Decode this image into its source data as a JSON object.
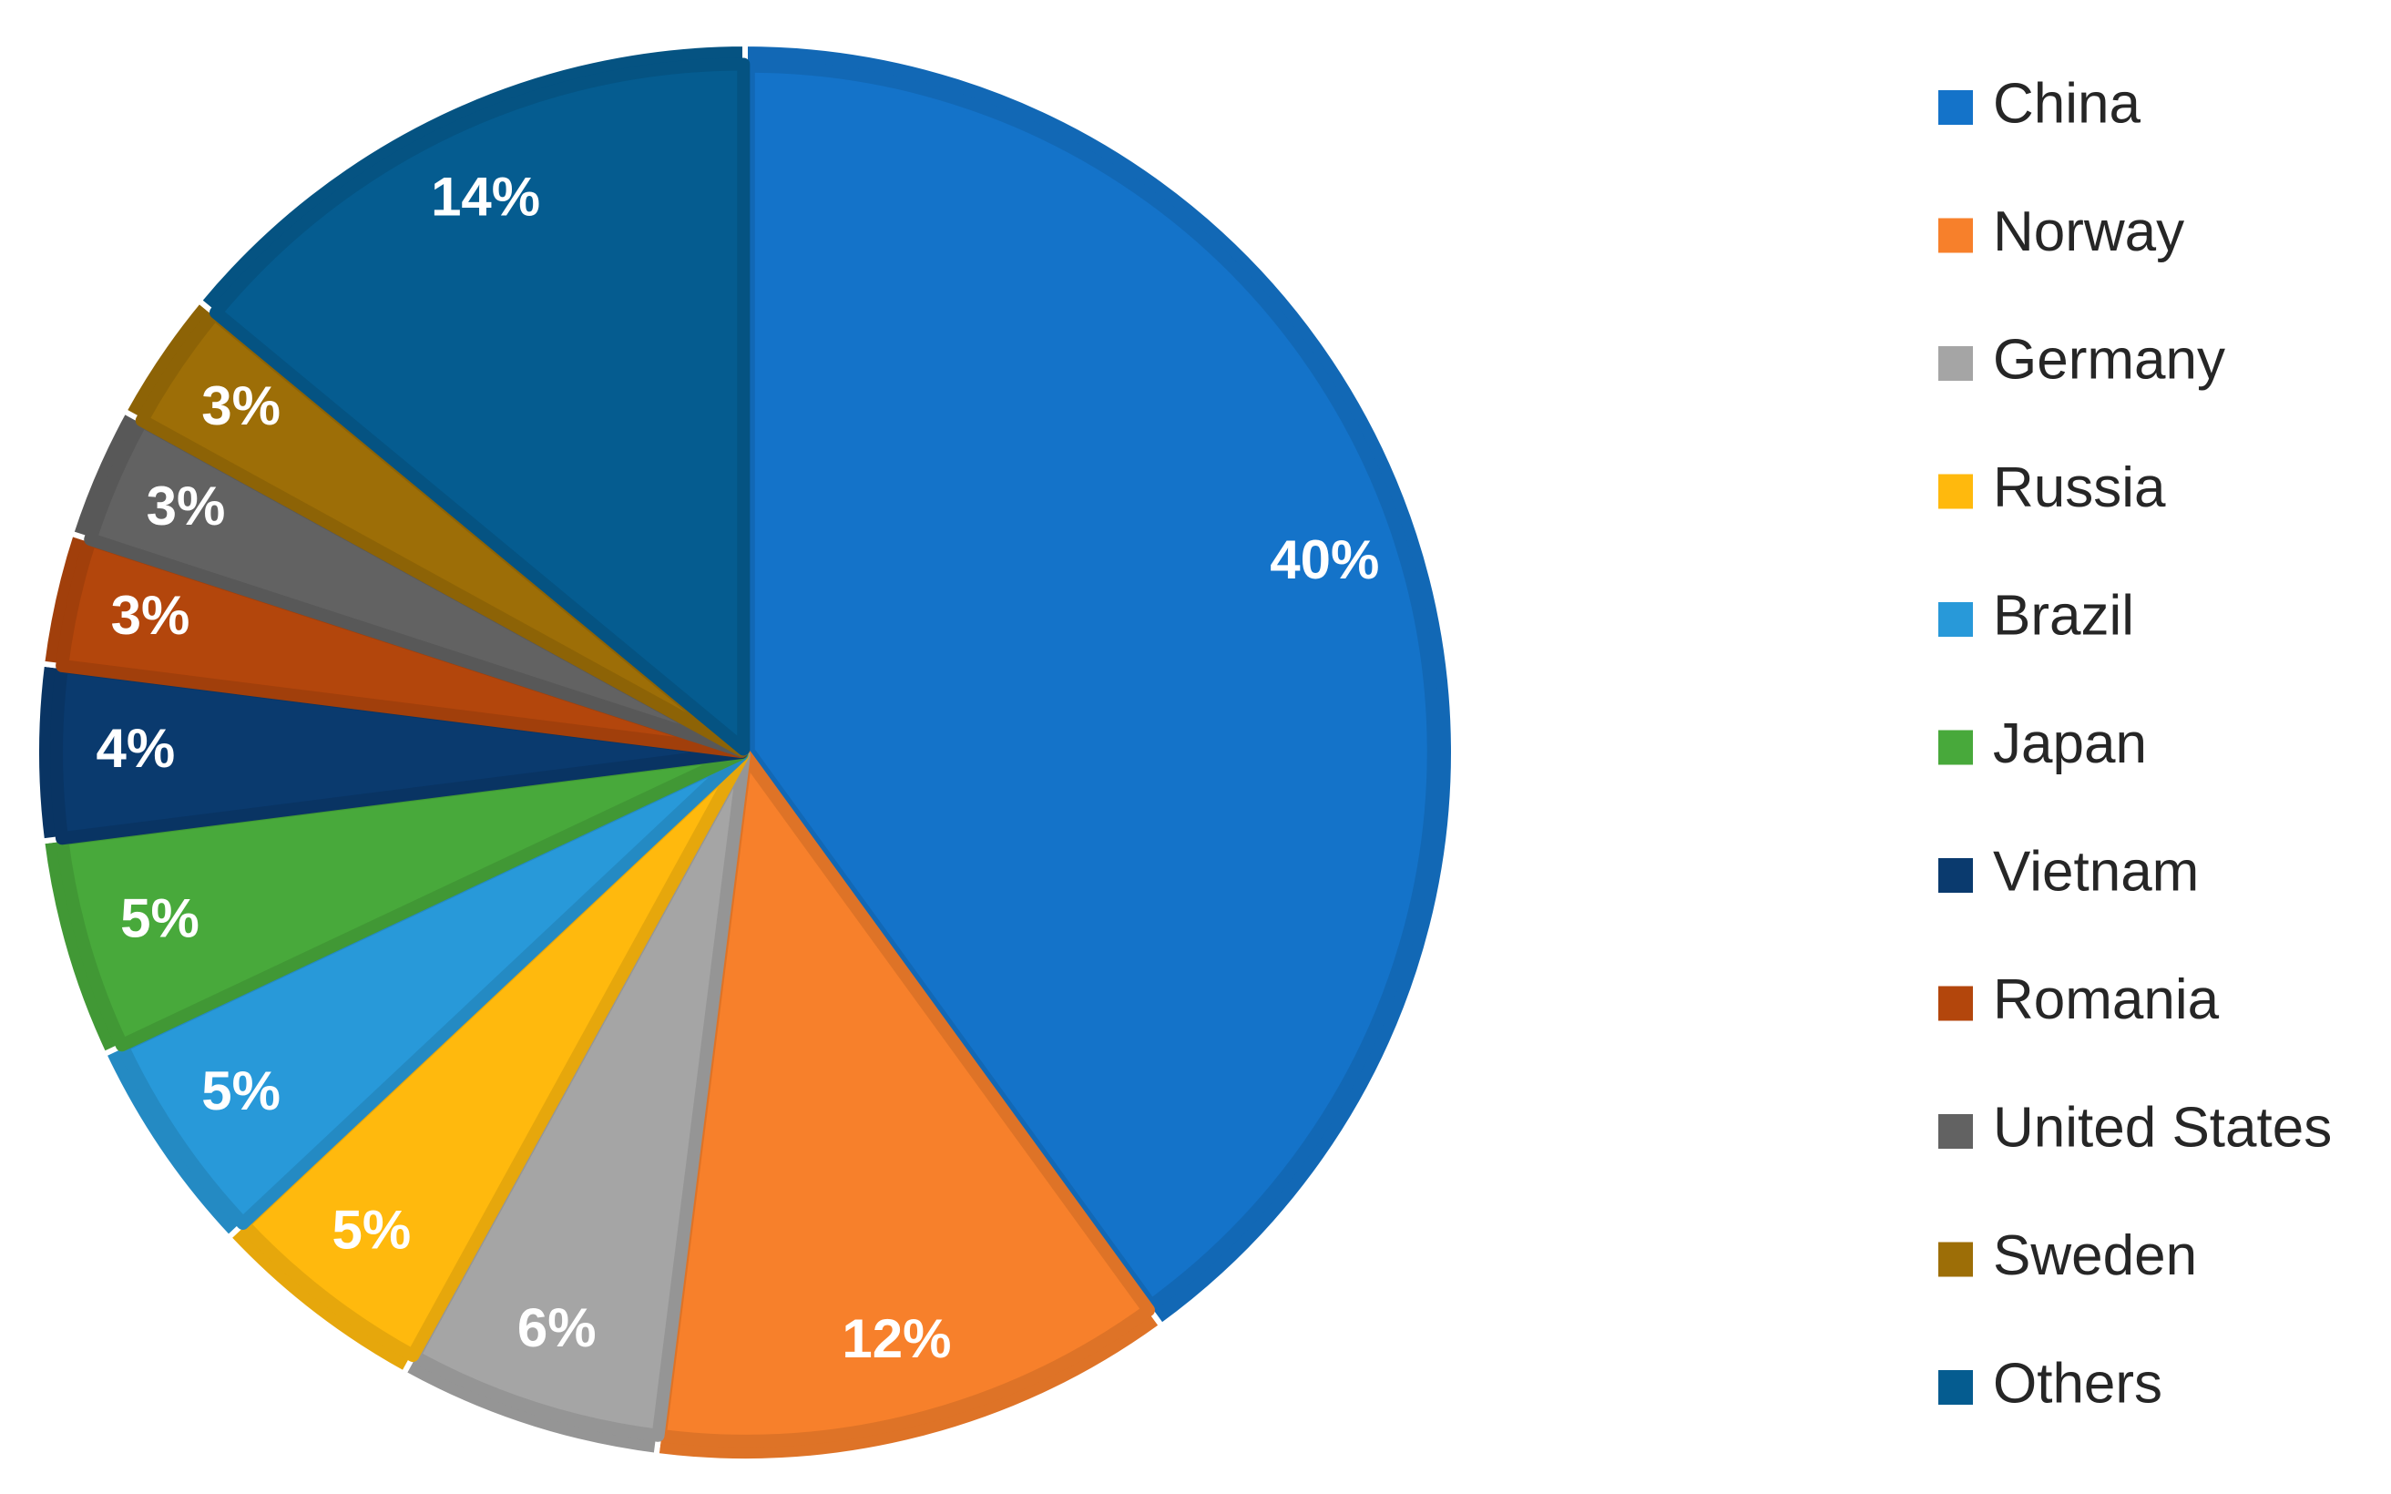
{
  "chart_data": {
    "type": "pie",
    "legend_position": "right",
    "slices": [
      {
        "name": "China",
        "value": 40,
        "label": "40%",
        "color": "#1473c9"
      },
      {
        "name": "Norway",
        "value": 12,
        "label": "12%",
        "color": "#f7802b"
      },
      {
        "name": "Germany",
        "value": 6,
        "label": "6%",
        "color": "#a5a5a5"
      },
      {
        "name": "Russia",
        "value": 5,
        "label": "5%",
        "color": "#ffb90d"
      },
      {
        "name": "Brazil",
        "value": 5,
        "label": "5%",
        "color": "#2899d9"
      },
      {
        "name": "Japan",
        "value": 5,
        "label": "5%",
        "color": "#48a93b"
      },
      {
        "name": "Vietnam",
        "value": 4,
        "label": "4%",
        "color": "#0a3a6e"
      },
      {
        "name": "Romania",
        "value": 3,
        "label": "3%",
        "color": "#b3460c"
      },
      {
        "name": "United States",
        "value": 3,
        "label": "3%",
        "color": "#626262"
      },
      {
        "name": "Sweden",
        "value": 3,
        "label": "3%",
        "color": "#9d6e07"
      },
      {
        "name": "Others",
        "value": 14,
        "label": "14%",
        "color": "#055c90"
      }
    ]
  }
}
